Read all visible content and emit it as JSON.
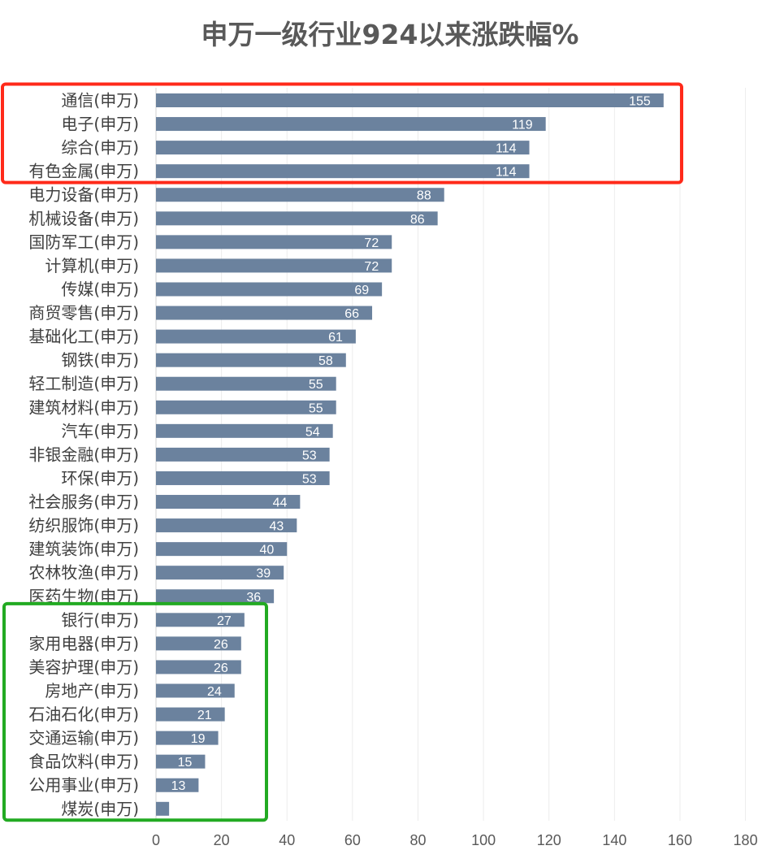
{
  "chart_data": {
    "type": "bar",
    "orientation": "horizontal",
    "title": "申万一级行业924以来涨跌幅%",
    "xlabel": "",
    "ylabel": "",
    "xlim": [
      0,
      180
    ],
    "x_ticks": [
      0,
      20,
      40,
      60,
      80,
      100,
      120,
      140,
      160,
      180
    ],
    "grid": "vertical",
    "bar_color": "#6b829e",
    "categories": [
      "通信(申万)",
      "电子(申万)",
      "综合(申万)",
      "有色金属(申万)",
      "电力设备(申万)",
      "机械设备(申万)",
      "国防军工(申万)",
      "计算机(申万)",
      "传媒(申万)",
      "商贸零售(申万)",
      "基础化工(申万)",
      "钢铁(申万)",
      "轻工制造(申万)",
      "建筑材料(申万)",
      "汽车(申万)",
      "非银金融(申万)",
      "环保(申万)",
      "社会服务(申万)",
      "纺织服饰(申万)",
      "建筑装饰(申万)",
      "农林牧渔(申万)",
      "医药生物(申万)",
      "银行(申万)",
      "家用电器(申万)",
      "美容护理(申万)",
      "房地产(申万)",
      "石油石化(申万)",
      "交通运输(申万)",
      "食品饮料(申万)",
      "公用事业(申万)",
      "煤炭(申万)"
    ],
    "values": [
      155,
      119,
      114,
      114,
      88,
      86,
      72,
      72,
      69,
      66,
      61,
      58,
      55,
      55,
      54,
      53,
      53,
      44,
      43,
      40,
      39,
      36,
      27,
      26,
      26,
      24,
      21,
      19,
      15,
      13,
      4
    ],
    "data_labels": [
      "155",
      "119",
      "114",
      "114",
      "88",
      "86",
      "72",
      "72",
      "69",
      "66",
      "61",
      "58",
      "55",
      "55",
      "54",
      "53",
      "53",
      "44",
      "43",
      "40",
      "39",
      "36",
      "27",
      "26",
      "26",
      "24",
      "21",
      "19",
      "15",
      "13",
      ""
    ],
    "annotations": [
      {
        "shape": "rectangle",
        "color": "#ff2a1a",
        "from_category": "通信(申万)",
        "to_category": "有色金属(申万)"
      },
      {
        "shape": "rectangle",
        "color": "#22aa22",
        "from_category": "银行(申万)",
        "to_category": "煤炭(申万)"
      }
    ]
  }
}
